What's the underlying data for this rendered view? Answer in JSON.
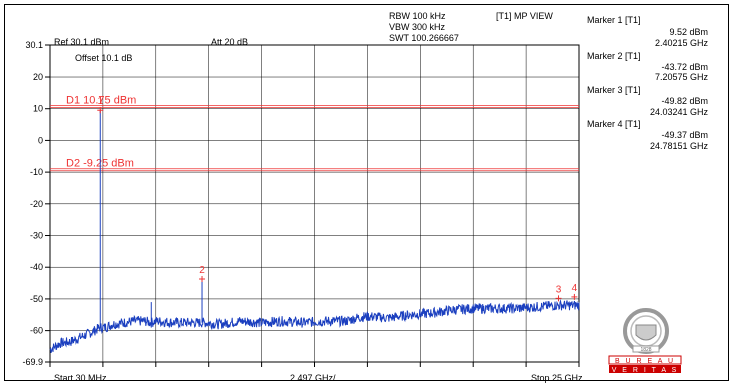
{
  "header": {
    "rbw": "RBW 100 kHz",
    "vbw": "VBW 300 kHz",
    "swt": "SWT 100.266667",
    "view": "[T1] MP VIEW",
    "ref": "Ref 30.1 dBm",
    "att": "Att  20 dB",
    "offset": "Offset 10.1 dB"
  },
  "markers": [
    {
      "label": "Marker 1 [T1]",
      "level": "9.52 dBm",
      "freq": "2.40215 GHz"
    },
    {
      "label": "Marker 2 [T1]",
      "level": "-43.72 dBm",
      "freq": "7.20575 GHz"
    },
    {
      "label": "Marker 3 [T1]",
      "level": "-49.82 dBm",
      "freq": "24.03241 GHz"
    },
    {
      "label": "Marker 4 [T1]",
      "level": "-49.37 dBm",
      "freq": "24.78151 GHz"
    }
  ],
  "footer": {
    "start": "Start 30 MHz",
    "div": "2.497 GHz/",
    "stop": "Stop 25 GHz"
  },
  "logo": {
    "text": "BUREAU VERITAS",
    "year": "1828"
  },
  "chart_data": {
    "type": "line",
    "x_unit": "GHz",
    "y_unit": "dBm",
    "xlim": [
      0.03,
      25
    ],
    "ylim": [
      -69.9,
      30.1
    ],
    "ytick_labels": [
      "30.1",
      "20",
      "10",
      "0",
      "-10",
      "-20",
      "-30",
      "-40",
      "-50",
      "-60",
      "-69.9"
    ],
    "ytick_values": [
      30.1,
      20,
      10,
      0,
      -10,
      -20,
      -30,
      -40,
      -50,
      -60,
      -69.9
    ],
    "grid": true,
    "display_lines": [
      {
        "label": "D1 10.75 dBm",
        "value": 10.75
      },
      {
        "label": "D2 -9.25 dBm",
        "value": -9.25
      }
    ],
    "marker_points": [
      {
        "label": "1",
        "x": 2.40215,
        "y": 9.52
      },
      {
        "label": "2",
        "x": 7.20575,
        "y": -43.72
      },
      {
        "label": "3",
        "x": 24.03241,
        "y": -49.82
      },
      {
        "label": "4",
        "x": 24.78151,
        "y": -49.37
      }
    ],
    "series": [
      {
        "x": [
          0.03,
          0.5,
          1.0,
          1.5,
          2.0,
          2.4,
          2.40215,
          2.6,
          3.0,
          3.5,
          4.0,
          4.5,
          4.8,
          4.81,
          5.0,
          6.0,
          7.0,
          7.20575,
          7.4,
          8.0,
          9.0,
          10.0,
          11.0,
          12.0,
          13.0,
          14.0,
          14.5,
          15.0,
          16.0,
          17.0,
          18.0,
          19.0,
          20.0,
          21.0,
          22.0,
          23.0,
          24.0,
          24.03241,
          24.5,
          24.78151,
          25.0
        ],
        "y": [
          -66,
          -64,
          -63.5,
          -62,
          -60.5,
          -59,
          9.52,
          -59,
          -58,
          -57.5,
          -57,
          -57,
          -57.5,
          -51,
          -57,
          -57.5,
          -57.5,
          -43.72,
          -57.5,
          -58,
          -57,
          -57.5,
          -57,
          -57.5,
          -57,
          -57,
          -56,
          -55.5,
          -56,
          -55,
          -54.5,
          -53.5,
          -53,
          -53,
          -53,
          -52.5,
          -52,
          -49.82,
          -52,
          -49.37,
          -52
        ]
      }
    ]
  }
}
